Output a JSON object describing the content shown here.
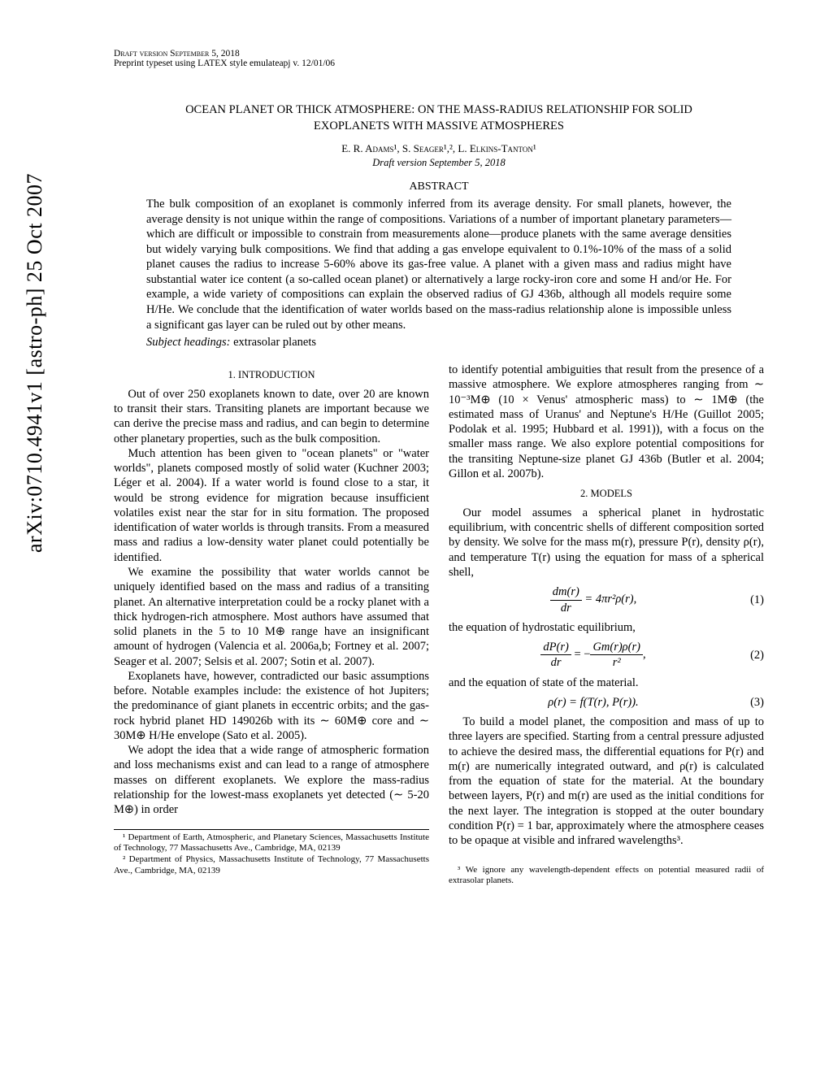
{
  "arxiv": "arXiv:0710.4941v1  [astro-ph]  25 Oct 2007",
  "header": {
    "draft": "Draft version September 5, 2018",
    "preprint": "Preprint typeset using LATEX style emulateapj v. 12/01/06"
  },
  "title_line1": "OCEAN PLANET OR THICK ATMOSPHERE: ON THE MASS-RADIUS RELATIONSHIP FOR SOLID",
  "title_line2": "EXOPLANETS WITH MASSIVE ATMOSPHERES",
  "authors": "E. R. Adams¹, S. Seager¹,², L. Elkins-Tanton¹",
  "date": "Draft version September 5, 2018",
  "abstract_heading": "ABSTRACT",
  "abstract": "The bulk composition of an exoplanet is commonly inferred from its average density. For small planets, however, the average density is not unique within the range of compositions. Variations of a number of important planetary parameters—which are difficult or impossible to constrain from measurements alone—produce planets with the same average densities but widely varying bulk compositions. We find that adding a gas envelope equivalent to 0.1%-10% of the mass of a solid planet causes the radius to increase 5-60% above its gas-free value. A planet with a given mass and radius might have substantial water ice content (a so-called ocean planet) or alternatively a large rocky-iron core and some H and/or He. For example, a wide variety of compositions can explain the observed radius of GJ 436b, although all models require some H/He. We conclude that the identification of water worlds based on the mass-radius relationship alone is impossible unless a significant gas layer can be ruled out by other means.",
  "subject_label": "Subject headings:",
  "subject_value": " extrasolar planets",
  "sections": {
    "intro": "1.  INTRODUCTION",
    "models": "2.  MODELS"
  },
  "left": {
    "p1": "Out of over 250 exoplanets known to date, over 20 are known to transit their stars. Transiting planets are important because we can derive the precise mass and radius, and can begin to determine other planetary properties, such as the bulk composition.",
    "p2": "Much attention has been given to \"ocean planets\" or \"water worlds\", planets composed mostly of solid water (Kuchner 2003; Léger et al. 2004). If a water world is found close to a star, it would be strong evidence for migration because insufficient volatiles exist near the star for in situ formation. The proposed identification of water worlds is through transits. From a measured mass and radius a low-density water planet could potentially be identified.",
    "p3": "We examine the possibility that water worlds cannot be uniquely identified based on the mass and radius of a transiting planet. An alternative interpretation could be a rocky planet with a thick hydrogen-rich atmosphere. Most authors have assumed that solid planets in the 5 to 10 M⊕ range have an insignificant amount of hydrogen (Valencia et al. 2006a,b; Fortney et al. 2007; Seager et al. 2007; Selsis et al. 2007; Sotin et al. 2007).",
    "p4": "Exoplanets have, however, contradicted our basic assumptions before. Notable examples include: the existence of hot Jupiters; the predominance of giant planets in eccentric orbits; and the gas-rock hybrid planet HD 149026b with its ∼ 60M⊕ core and ∼ 30M⊕ H/He envelope (Sato et al. 2005).",
    "p5": "We adopt the idea that a wide range of atmospheric formation and loss mechanisms exist and can lead to a range of atmosphere masses on different exoplanets. We explore the mass-radius relationship for the lowest-mass exoplanets yet detected (∼ 5-20 M⊕) in order"
  },
  "right": {
    "p1": "to identify potential ambiguities that result from the presence of a massive atmosphere. We explore atmospheres ranging from ∼ 10⁻³M⊕ (10 × Venus' atmospheric mass) to ∼ 1M⊕ (the estimated mass of Uranus' and Neptune's H/He (Guillot 2005; Podolak et al. 1995; Hubbard et al. 1991)), with a focus on the smaller mass range. We also explore potential compositions for the transiting Neptune-size planet GJ 436b (Butler et al. 2004; Gillon et al. 2007b).",
    "p2": "Our model assumes a spherical planet in hydrostatic equilibrium, with concentric shells of different composition sorted by density. We solve for the mass m(r), pressure P(r), density ρ(r), and temperature T(r) using the equation for mass of a spherical shell,",
    "eq1_lhs": "dm(r)",
    "eq1_lhs_den": "dr",
    "eq1_rhs": " = 4πr²ρ(r),",
    "eq1_no": "(1)",
    "p3": "the equation of hydrostatic equilibrium,",
    "eq2_lhs_num": "dP(r)",
    "eq2_lhs_den": "dr",
    "eq2_mid": " = −",
    "eq2_rhs_num": "Gm(r)ρ(r)",
    "eq2_rhs_den": "r²",
    "eq2_tail": ",",
    "eq2_no": "(2)",
    "p4": "and the equation of state of the material.",
    "eq3": "ρ(r) = f(T(r), P(r)).",
    "eq3_no": "(3)",
    "p5": "To build a model planet, the composition and mass of up to three layers are specified. Starting from a central pressure adjusted to achieve the desired mass, the differential equations for P(r) and m(r) are numerically integrated outward, and ρ(r) is calculated from the equation of state for the material. At the boundary between layers, P(r) and m(r) are used as the initial conditions for the next layer. The integration is stopped at the outer boundary condition P(r) = 1 bar, approximately where the atmosphere ceases to be opaque at visible and infrared wavelengths³."
  },
  "footnotes": {
    "f1": "¹ Department of Earth, Atmospheric, and Planetary Sciences, Massachusetts Institute of Technology, 77 Massachusetts Ave., Cambridge, MA, 02139",
    "f2": "² Department of Physics, Massachusetts Institute of Technology, 77 Massachusetts Ave., Cambridge, MA, 02139",
    "f3": "³ We ignore any wavelength-dependent effects on potential measured radii of extrasolar planets."
  }
}
